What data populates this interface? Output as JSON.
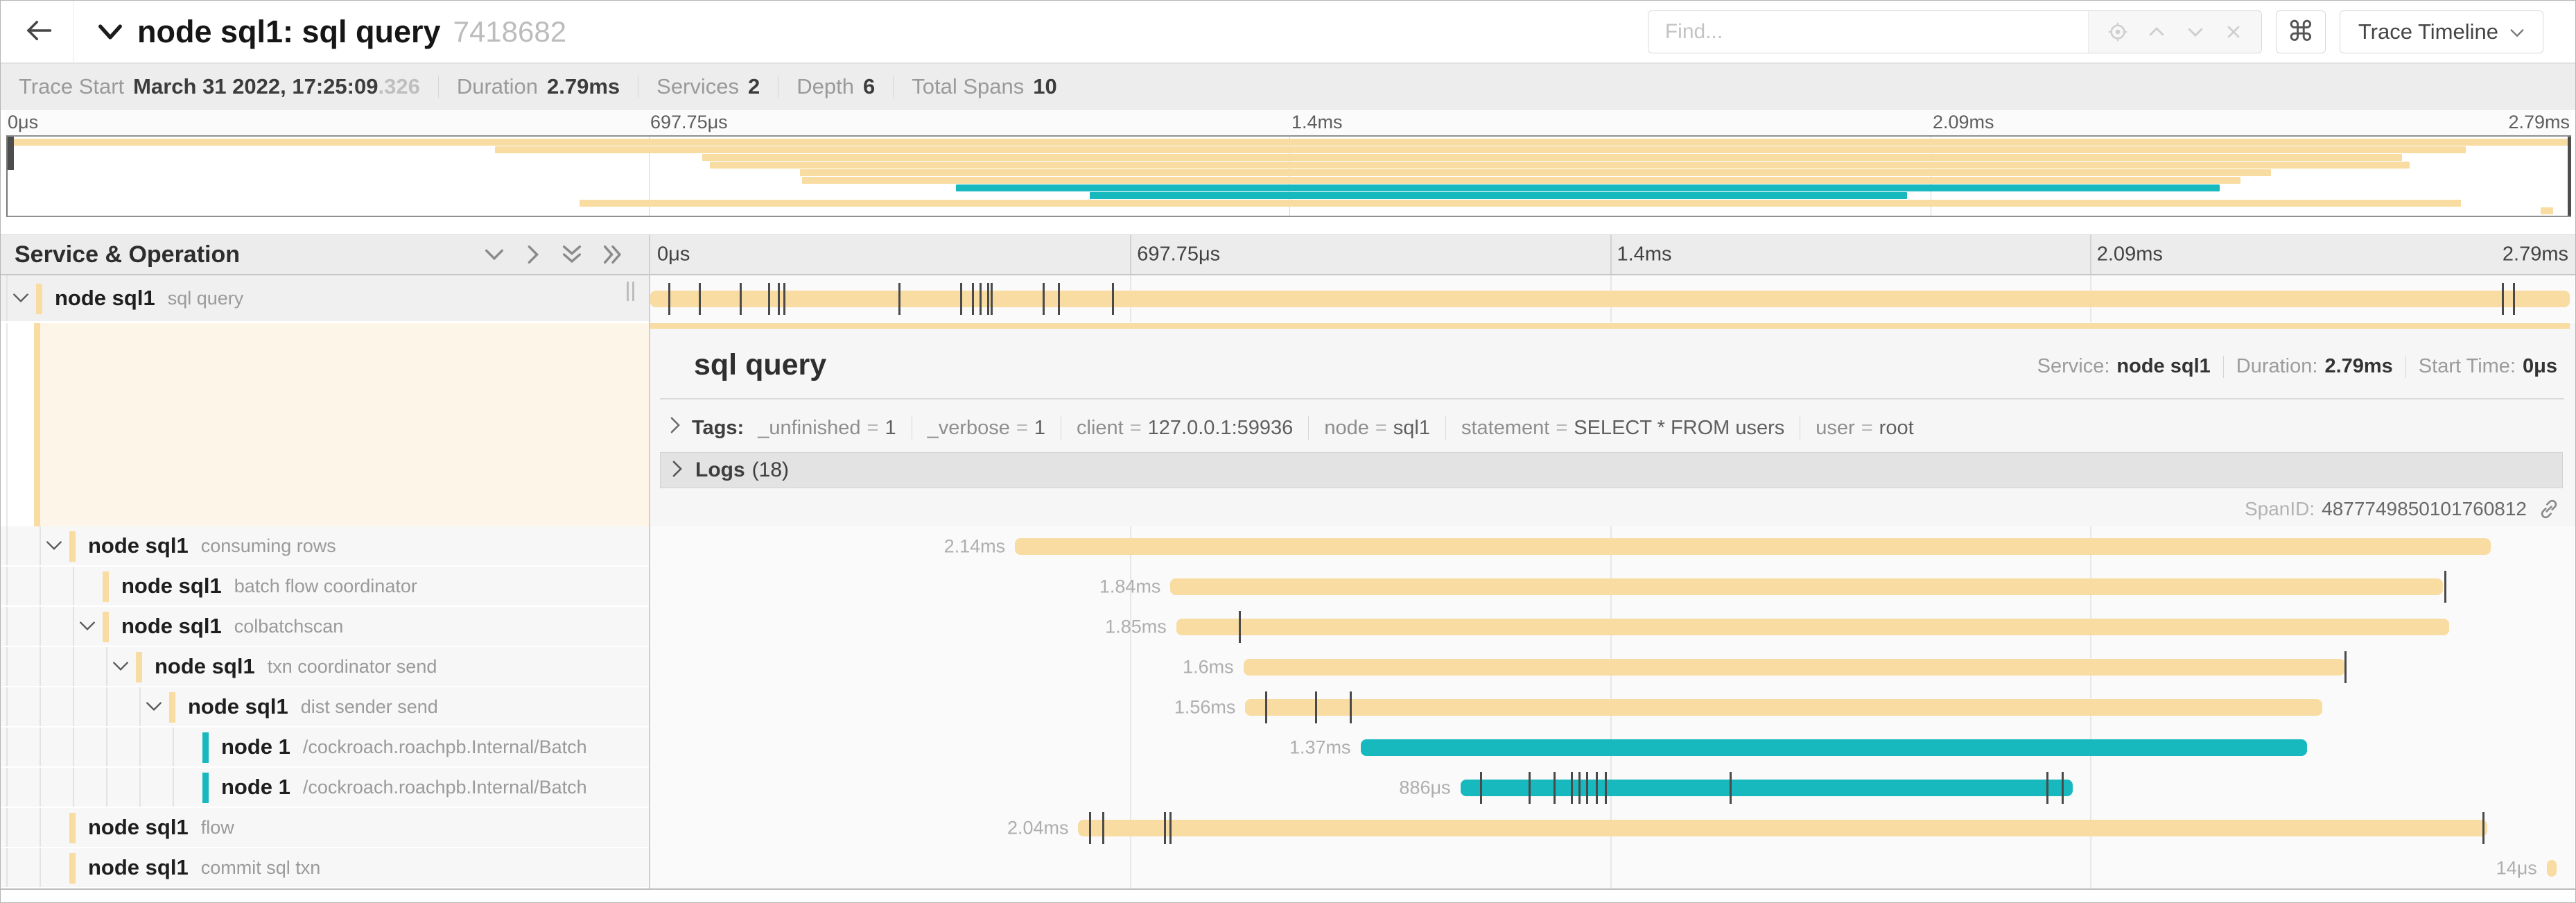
{
  "colors": {
    "tan": "#F8DCA1",
    "teal": "#17B8BE",
    "tick": "#4a4a4a"
  },
  "nav": {
    "title": "node sql1: sql query",
    "trace_id": "7418682",
    "find_placeholder": "Find...",
    "shortcut_button": "⌘",
    "view_button": "Trace Timeline"
  },
  "metadata": {
    "items": [
      {
        "label": "Trace Start",
        "value": "March 31 2022, 17:25:09",
        "suffix": ".326"
      },
      {
        "label": "Duration",
        "value": "2.79ms"
      },
      {
        "label": "Services",
        "value": "2"
      },
      {
        "label": "Depth",
        "value": "6"
      },
      {
        "label": "Total Spans",
        "value": "10"
      }
    ]
  },
  "timeline": {
    "axis_ticks": [
      "0μs",
      "697.75μs",
      "1.4ms",
      "2.09ms",
      "2.79ms"
    ],
    "tick_positions": [
      0,
      25,
      50,
      75,
      100
    ]
  },
  "left_header": {
    "title": "Service & Operation"
  },
  "spans": [
    {
      "service": "node sql1",
      "operation": "sql query",
      "depth": 0,
      "expandable": true,
      "color": "tan",
      "start_pct": 0,
      "width_pct": 100,
      "duration_label": "",
      "selected": true,
      "ticks": [
        1.0,
        2.6,
        4.7,
        6.2,
        6.7,
        7.0,
        13.0,
        16.2,
        16.8,
        17.2,
        17.6,
        17.8,
        20.5,
        21.3,
        24.1,
        96.5,
        97.1
      ]
    },
    {
      "service": "node sql1",
      "operation": "consuming rows",
      "depth": 1,
      "expandable": true,
      "color": "tan",
      "start_pct": 19.0,
      "width_pct": 76.9,
      "duration_label": "2.14ms",
      "ticks": []
    },
    {
      "service": "node sql1",
      "operation": "batch flow coordinator",
      "depth": 2,
      "expandable": false,
      "color": "tan",
      "start_pct": 27.1,
      "width_pct": 66.3,
      "duration_label": "1.84ms",
      "ticks": [
        93.5
      ]
    },
    {
      "service": "node sql1",
      "operation": "colbatchscan",
      "depth": 2,
      "expandable": true,
      "color": "tan",
      "start_pct": 27.4,
      "width_pct": 66.3,
      "duration_label": "1.85ms",
      "ticks": [
        30.7
      ]
    },
    {
      "service": "node sql1",
      "operation": "txn coordinator send",
      "depth": 3,
      "expandable": true,
      "color": "tan",
      "start_pct": 30.9,
      "width_pct": 57.4,
      "duration_label": "1.6ms",
      "ticks": [
        88.3
      ]
    },
    {
      "service": "node sql1",
      "operation": "dist sender send",
      "depth": 4,
      "expandable": true,
      "color": "tan",
      "start_pct": 31.0,
      "width_pct": 56.1,
      "duration_label": "1.56ms",
      "ticks": [
        32.1,
        34.7,
        36.5
      ]
    },
    {
      "service": "node 1",
      "operation": "/cockroach.roachpb.Internal/Batch",
      "depth": 5,
      "expandable": false,
      "color": "teal",
      "start_pct": 37.0,
      "width_pct": 49.3,
      "duration_label": "1.37ms",
      "ticks": []
    },
    {
      "service": "node 1",
      "operation": "/cockroach.roachpb.Internal/Batch",
      "depth": 5,
      "expandable": false,
      "color": "teal",
      "start_pct": 42.2,
      "width_pct": 31.9,
      "duration_label": "886μs",
      "ticks": [
        43.3,
        45.8,
        47.1,
        48.0,
        48.4,
        48.8,
        49.3,
        49.8,
        56.3,
        72.8,
        73.6
      ]
    },
    {
      "service": "node sql1",
      "operation": "flow",
      "depth": 1,
      "expandable": false,
      "color": "tan",
      "start_pct": 22.3,
      "width_pct": 73.4,
      "duration_label": "2.04ms",
      "ticks": [
        22.9,
        23.6,
        26.8,
        27.1,
        95.5
      ]
    },
    {
      "service": "node sql1",
      "operation": "commit sql txn",
      "depth": 1,
      "expandable": false,
      "color": "tan",
      "start_pct": 98.8,
      "width_pct": 0.5,
      "duration_label": "14μs",
      "ticks": []
    }
  ],
  "detail": {
    "operation": "sql query",
    "service_label": "Service:",
    "service": "node sql1",
    "duration_label": "Duration:",
    "duration": "2.79ms",
    "start_time_label": "Start Time:",
    "start_time": "0μs",
    "tags_label": "Tags:",
    "tags": [
      {
        "key": "_unfinished",
        "value": "1"
      },
      {
        "key": "_verbose",
        "value": "1"
      },
      {
        "key": "client",
        "value": "127.0.0.1:59936"
      },
      {
        "key": "node",
        "value": "sql1"
      },
      {
        "key": "statement",
        "value": "SELECT * FROM users"
      },
      {
        "key": "user",
        "value": "root"
      }
    ],
    "logs_label": "Logs",
    "logs_count": "(18)",
    "span_id_label": "SpanID:",
    "span_id": "4877749850101760812"
  }
}
